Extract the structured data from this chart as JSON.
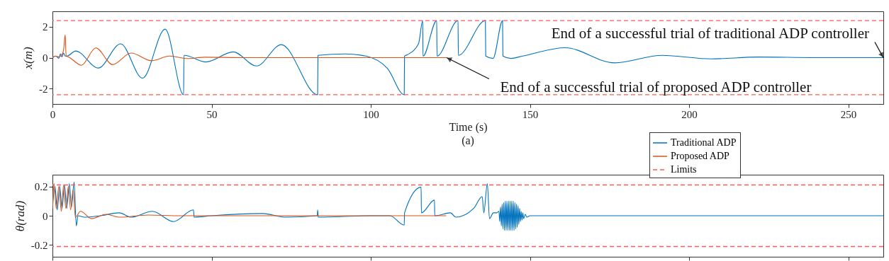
{
  "chart_data": [
    {
      "type": "line",
      "xlabel": "Time (s)",
      "ylabel": "x(m)",
      "xlim": [
        0,
        261
      ],
      "ylim": [
        -3,
        3
      ],
      "xticks": [
        0,
        50,
        100,
        150,
        200,
        250
      ],
      "yticks": [
        -2,
        0,
        2
      ],
      "grid": false,
      "legend": false,
      "line_style": "solid",
      "marker": "none",
      "series": [
        {
          "color": "#0072bd",
          "x": [
            0,
            1,
            2,
            2.5,
            3,
            3.5,
            4,
            4.5,
            7.3,
            14.4,
            21.4,
            28.3,
            35.4,
            41.2,
            41.3,
            41.5,
            48.2,
            56.8,
            64.1,
            71.9,
            83.3,
            83.4,
            92,
            98.5,
            105.3,
            110.5,
            110.6,
            111.6,
            115,
            116.3,
            116.4,
            120.7,
            120.8,
            127.4,
            127.5,
            136,
            136.1,
            138.4,
            141.4,
            141.5,
            144,
            147.7,
            161,
            176.6,
            191.5,
            207,
            221.6,
            240,
            261
          ],
          "values": [
            0,
            0.1,
            -0.05,
            0.25,
            0.05,
            0.3,
            0.1,
            0.1,
            0.43,
            -0.67,
            0.89,
            -1.33,
            1.85,
            -2.4,
            0.15,
            0.15,
            -0.28,
            0.37,
            -0.54,
            0.84,
            -2.4,
            0.15,
            0.24,
            0.1,
            -0.72,
            -2.4,
            0.1,
            0.2,
            0.9,
            2.4,
            0.1,
            2.4,
            0.1,
            2.4,
            0.15,
            2.4,
            0.1,
            -0.05,
            2.4,
            0.1,
            -0.05,
            0.1,
            0.64,
            -0.34,
            0.15,
            -0.08,
            0.04,
            0,
            0
          ]
        },
        {
          "color": "#d95319",
          "x": [
            0,
            1,
            2,
            3,
            3.5,
            4,
            4.3,
            5,
            9.1,
            13.6,
            18.9,
            24.7,
            31.2,
            36.8,
            42.4,
            48,
            60,
            123.8
          ],
          "values": [
            0,
            0.1,
            0.05,
            0.2,
            0.5,
            1.47,
            0.1,
            0.05,
            -0.49,
            0.63,
            -0.45,
            0.3,
            -0.2,
            0.1,
            -0.06,
            0.03,
            0,
            0
          ]
        }
      ],
      "ref_lines": [
        {
          "axis": "y",
          "value": 2.4,
          "color": "#ff5a5a",
          "line_style": "dashed"
        },
        {
          "axis": "y",
          "value": -2.4,
          "color": "#ff5a5a",
          "line_style": "dashed"
        }
      ],
      "annotations": [
        {
          "text": "End of a successful trial of traditional ADP controller",
          "x": 261,
          "y": 0
        },
        {
          "text": "End of a successful trial of proposed ADP controller",
          "x": 123.8,
          "y": 0
        },
        "(a)"
      ]
    },
    {
      "type": "line",
      "ylabel": "θ(rad)",
      "xlim": [
        0,
        261
      ],
      "ylim": [
        -0.28,
        0.28
      ],
      "xticks": [
        0,
        50,
        100,
        150,
        200,
        250
      ],
      "yticks": [
        -0.2,
        0,
        0.2
      ],
      "tick_labels": "y",
      "grid": false,
      "legend": "top right",
      "line_style": "solid",
      "marker": "none",
      "series": [
        {
          "name": "Traditional ADP",
          "color": "#0072bd",
          "x": [
            0,
            0.8,
            1.5,
            2.3,
            3,
            3.8,
            4.5,
            5.3,
            6,
            6.8,
            7.5,
            8,
            10,
            15,
            21,
            24.7,
            31.4,
            38,
            44.3,
            44.5,
            50,
            66,
            73.4,
            83.2,
            83.3,
            83.5,
            100,
            106,
            110.5,
            110.6,
            115.8,
            115.9,
            120,
            120.1,
            125,
            126.7,
            132.3,
            135,
            135.5,
            136.6,
            137.3,
            138.5,
            139.5,
            140.25,
            140.5,
            140.75,
            141,
            141.25,
            141.5,
            141.75,
            142,
            142.25,
            142.5,
            142.75,
            143,
            143.25,
            143.5,
            143.75,
            144,
            144.25,
            144.5,
            144.75,
            145,
            145.25,
            145.5,
            145.75,
            146,
            146.25,
            146.5,
            146.75,
            147,
            147.25,
            147.5,
            147.75,
            148,
            148.5,
            149,
            150,
            170,
            261
          ],
          "values": [
            0.05,
            0.2,
            0.04,
            0.2,
            0.05,
            0.21,
            0.05,
            0.22,
            0.06,
            0.23,
            -0.07,
            0,
            -0.01,
            0,
            0.02,
            -0.01,
            0.03,
            -0.04,
            0.04,
            -0.01,
            0,
            0.015,
            -0.01,
            0,
            0.04,
            -0.01,
            0,
            0,
            -0.064,
            0.02,
            0.195,
            0.02,
            0.107,
            0,
            0.02,
            -0.01,
            0.05,
            0.13,
            0.02,
            0.22,
            -0.02,
            0.02,
            0.02,
            0.03,
            -0.04,
            0.06,
            -0.07,
            0.08,
            -0.09,
            0.09,
            -0.1,
            0.1,
            -0.1,
            0.1,
            -0.1,
            0.1,
            -0.1,
            0.1,
            -0.1,
            0.1,
            -0.1,
            0.1,
            -0.1,
            0.09,
            -0.09,
            0.08,
            -0.08,
            0.07,
            -0.06,
            0.05,
            -0.04,
            0.03,
            -0.03,
            0.02,
            -0.02,
            0.01,
            -0.01,
            0,
            0,
            0
          ]
        },
        {
          "name": "Proposed ADP",
          "color": "#d95319",
          "x": [
            0,
            0.5,
            1.2,
            2,
            2.8,
            3.5,
            4.2,
            5,
            5.7,
            6.5,
            7.2,
            8.8,
            12.3,
            16.8,
            21.2,
            30,
            40,
            123.7
          ],
          "values": [
            0.05,
            0.22,
            0.05,
            0.2,
            0.03,
            0.21,
            0.05,
            0.2,
            0.04,
            0.18,
            -0.01,
            0.03,
            -0.02,
            0.01,
            -0.01,
            0.005,
            0,
            0
          ]
        }
      ],
      "ref_lines": [
        {
          "axis": "y",
          "value": 0.21,
          "label": "Limits",
          "color": "#ff5a5a",
          "line_style": "dashed"
        },
        {
          "axis": "y",
          "value": -0.21,
          "color": "#ff5a5a",
          "line_style": "dashed"
        }
      ]
    }
  ]
}
